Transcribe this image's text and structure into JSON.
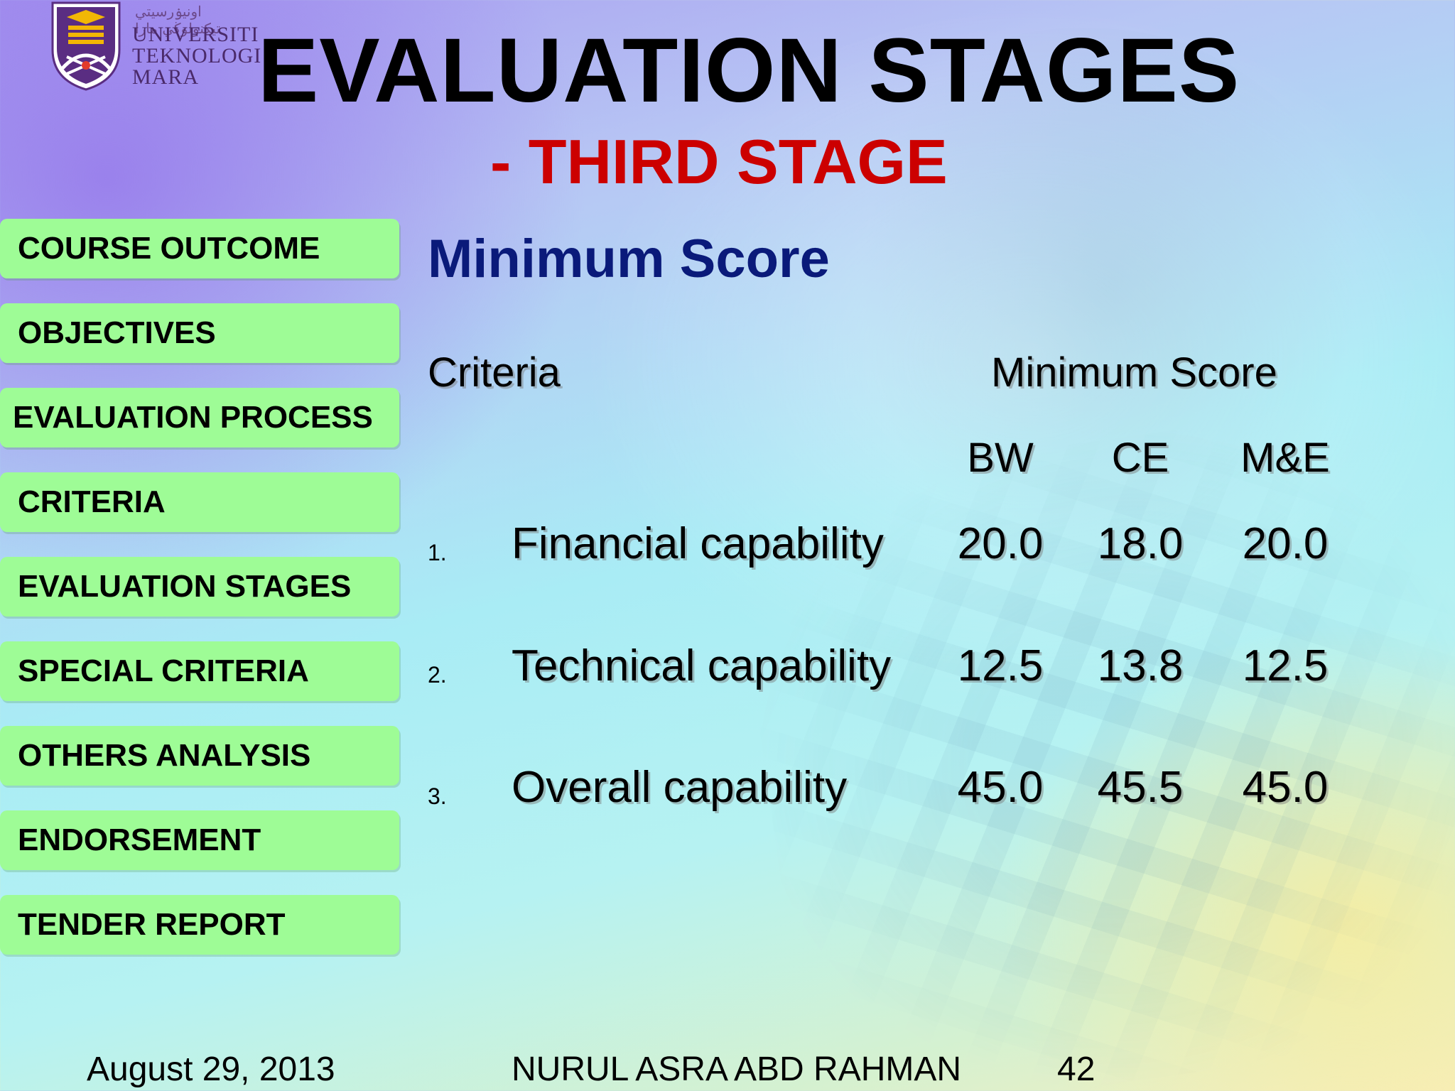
{
  "logo": {
    "jawi_text": "اونيۏرسيتي تيكنولوڬي مارا",
    "lines": [
      "UNIVERSITI",
      "TEKNOLOGI",
      "MARA"
    ],
    "colors": {
      "shield": "#5a2d82",
      "book": "#f2b705",
      "accent": "#e23b2a"
    }
  },
  "slide": {
    "title": "EVALUATION STAGES",
    "subtitle": "- THIRD STAGE"
  },
  "sidebar": {
    "items": [
      {
        "label": "COURSE OUTCOME"
      },
      {
        "label": "OBJECTIVES"
      },
      {
        "label": "EVALUATION PROCESS"
      },
      {
        "label": "CRITERIA"
      },
      {
        "label": "EVALUATION STAGES"
      },
      {
        "label": "SPECIAL CRITERIA"
      },
      {
        "label": "OTHERS ANALYSIS"
      },
      {
        "label": "ENDORSEMENT"
      },
      {
        "label": "TENDER REPORT"
      }
    ]
  },
  "main": {
    "heading": "Minimum Score",
    "table": {
      "criteria_header": "Criteria",
      "score_header": "Minimum Score",
      "columns": [
        "BW",
        "CE",
        "M&E"
      ],
      "rows": [
        {
          "num": "1.",
          "label": "Financial capability",
          "values": [
            "20.0",
            "18.0",
            "20.0"
          ]
        },
        {
          "num": "2.",
          "label": "Technical capability",
          "values": [
            "12.5",
            "13.8",
            "12.5"
          ]
        },
        {
          "num": "3.",
          "label": "Overall capability",
          "values": [
            "45.0",
            "45.5",
            "45.0"
          ]
        }
      ]
    }
  },
  "footer": {
    "date": "August 29, 2013",
    "author": "NURUL ASRA ABD RAHMAN",
    "page": "42"
  }
}
